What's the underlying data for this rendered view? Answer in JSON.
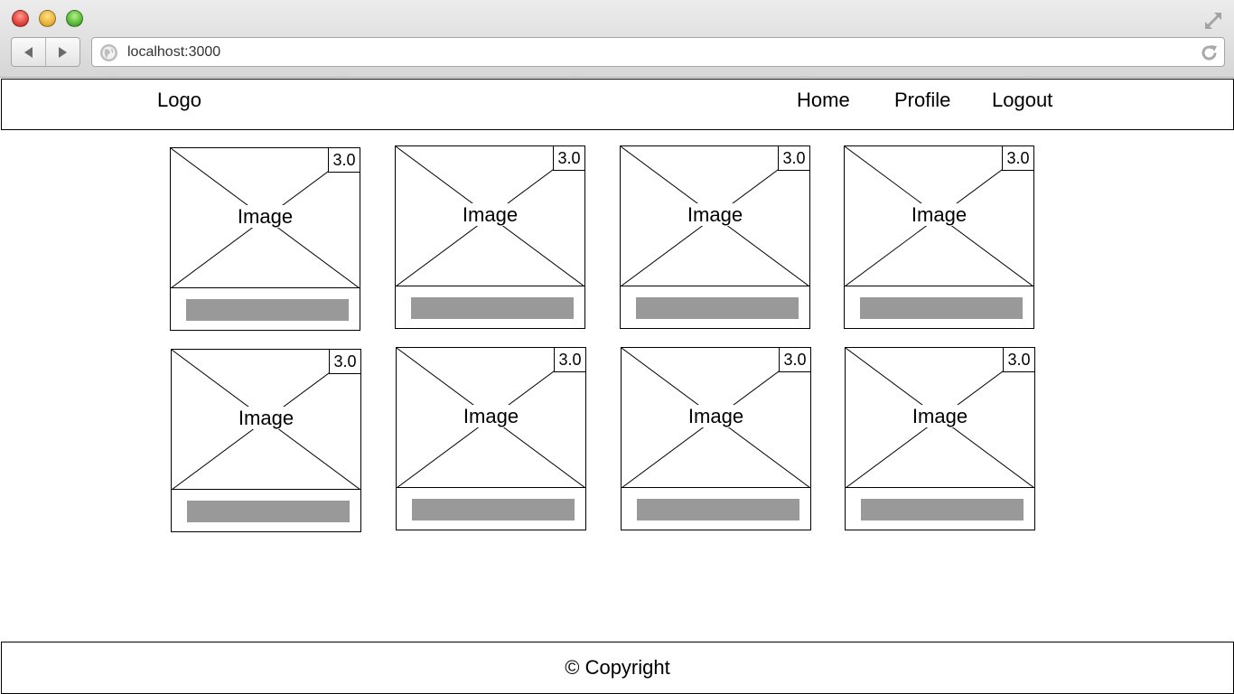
{
  "browser": {
    "url": "localhost:3000",
    "icons": [
      "close-dot",
      "minimize-dot",
      "zoom-dot",
      "back-arrow",
      "forward-arrow",
      "globe",
      "reload",
      "fullscreen"
    ]
  },
  "header": {
    "logo": "Logo",
    "nav": [
      {
        "label": "Home"
      },
      {
        "label": "Profile"
      },
      {
        "label": "Logout"
      }
    ]
  },
  "cards": [
    {
      "image_label": "Image",
      "badge": "3.0"
    },
    {
      "image_label": "Image",
      "badge": "3.0"
    },
    {
      "image_label": "Image",
      "badge": "3.0"
    },
    {
      "image_label": "Image",
      "badge": "3.0"
    },
    {
      "image_label": "Image",
      "badge": "3.0"
    },
    {
      "image_label": "Image",
      "badge": "3.0"
    },
    {
      "image_label": "Image",
      "badge": "3.0"
    },
    {
      "image_label": "Image",
      "badge": "3.0"
    }
  ],
  "footer": {
    "copyright": "© Copyright"
  },
  "colors": {
    "bar_fill": "#999999",
    "border": "#000000"
  }
}
